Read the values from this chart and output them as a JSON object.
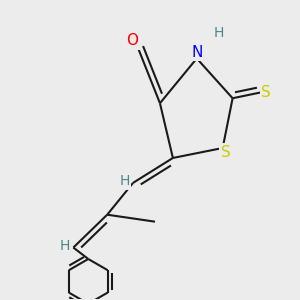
{
  "background_color": "#ececec",
  "atom_colors": {
    "C": "#1a1a1a",
    "H": "#4a8888",
    "N": "#0000ff",
    "O": "#ff0000",
    "S": "#cccc00"
  },
  "bond_color": "#1a1a1a",
  "bond_width": 1.5,
  "dbo": 0.018,
  "figsize": [
    3.0,
    3.0
  ],
  "dpi": 100
}
